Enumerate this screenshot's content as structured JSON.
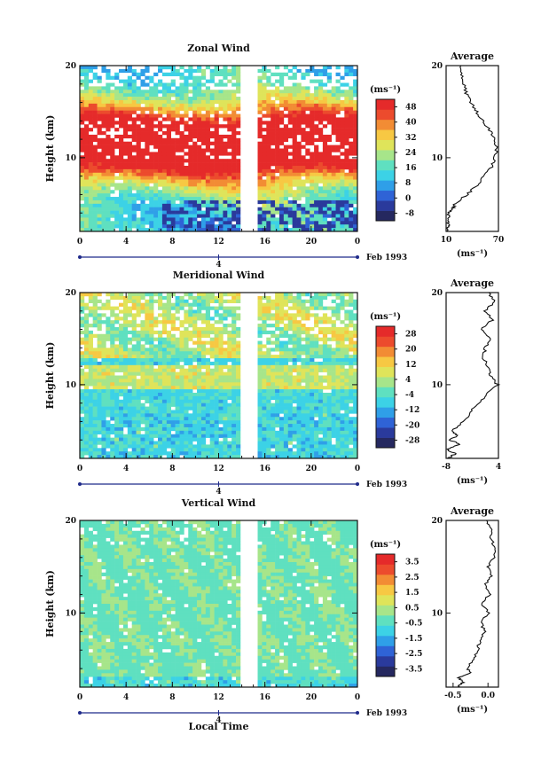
{
  "figure": {
    "xlabel": "Local Time",
    "date_label": "Feb 1993",
    "day_label": "4"
  },
  "chart_data": [
    {
      "type": "heatmap",
      "id": "zonal",
      "title": "Zonal Wind",
      "ylabel": "Height (km)",
      "xlabel": "",
      "x_ticks": [
        "0",
        "4",
        "8",
        "12",
        "16",
        "20",
        "0"
      ],
      "x_range_hours": [
        0,
        24
      ],
      "y_ticks": [
        "20",
        "10"
      ],
      "ylim_km": [
        2,
        20
      ],
      "data_gap_hours": [
        13.9,
        15.4
      ],
      "unit_label": "(ms⁻¹)",
      "colorbar_ticks": [
        "48",
        "40",
        "32",
        "24",
        "16",
        "8",
        "0",
        "-8"
      ],
      "colorbar_range": [
        -12,
        52
      ],
      "profile": {
        "title": "Average",
        "x_ticks": [
          "10",
          "70"
        ],
        "xlim": [
          10,
          70
        ],
        "y_ticks": [
          "20",
          "10"
        ],
        "unit_label": "(ms⁻¹)",
        "heights_km": [
          2,
          2.5,
          3,
          3.5,
          4,
          4.5,
          5,
          6,
          7,
          8,
          9,
          10,
          11,
          12,
          13,
          14,
          15,
          16,
          17,
          18,
          19,
          20
        ],
        "values": [
          12,
          13,
          12,
          14,
          12,
          18,
          20,
          34,
          45,
          54,
          62,
          66,
          68,
          66,
          60,
          52,
          45,
          38,
          33,
          30,
          28,
          27
        ]
      }
    },
    {
      "type": "heatmap",
      "id": "meridional",
      "title": "Meridional Wind",
      "ylabel": "Height (km)",
      "xlabel": "",
      "x_ticks": [
        "0",
        "4",
        "8",
        "12",
        "16",
        "20",
        "0"
      ],
      "x_range_hours": [
        0,
        24
      ],
      "y_ticks": [
        "20",
        "10"
      ],
      "ylim_km": [
        2,
        20
      ],
      "data_gap_hours": [
        13.9,
        15.4
      ],
      "unit_label": "(ms⁻¹)",
      "colorbar_ticks": [
        "28",
        "20",
        "12",
        "4",
        "-4",
        "-12",
        "-20",
        "-28"
      ],
      "colorbar_range": [
        -32,
        32
      ],
      "profile": {
        "title": "Average",
        "x_ticks": [
          "-8",
          "4"
        ],
        "xlim": [
          -8,
          4
        ],
        "y_ticks": [
          "20",
          "10"
        ],
        "unit_label": "(ms⁻¹)",
        "heights_km": [
          2,
          2.5,
          3,
          3.5,
          4,
          4.5,
          5,
          6,
          7,
          8,
          9,
          10,
          11,
          12,
          13,
          14,
          15,
          16,
          17,
          18,
          19,
          20
        ],
        "values": [
          -7.5,
          -6,
          -7.8,
          -5,
          -7,
          -5.5,
          -6.5,
          -4,
          -2.5,
          -0.5,
          1.5,
          3.8,
          2,
          1.5,
          0.5,
          1,
          2,
          0,
          2.5,
          1,
          3,
          1.8
        ]
      }
    },
    {
      "type": "heatmap",
      "id": "vertical",
      "title": "Vertical Wind",
      "ylabel": "Height (km)",
      "xlabel": "Local Time",
      "x_ticks": [
        "0",
        "4",
        "8",
        "12",
        "16",
        "20",
        "0"
      ],
      "x_range_hours": [
        0,
        24
      ],
      "y_ticks": [
        "20",
        "10"
      ],
      "ylim_km": [
        2,
        20
      ],
      "data_gap_hours": [
        13.9,
        15.4
      ],
      "unit_label": "(ms⁻¹)",
      "colorbar_ticks": [
        "3.5",
        "2.5",
        "1.5",
        "0.5",
        "-0.5",
        "-1.5",
        "-2.5",
        "-3.5"
      ],
      "colorbar_range": [
        -4,
        4
      ],
      "profile": {
        "title": "Average",
        "x_ticks": [
          "-0.5",
          "0.0"
        ],
        "xlim": [
          -0.6,
          0.15
        ],
        "y_ticks": [
          "20",
          "10"
        ],
        "unit_label": "(ms⁻¹)",
        "heights_km": [
          2,
          2.5,
          3,
          3.5,
          4,
          5,
          6,
          7,
          8,
          9,
          10,
          11,
          12,
          13,
          14,
          15,
          16,
          17,
          18,
          19,
          20
        ],
        "values": [
          -0.45,
          -0.35,
          -0.42,
          -0.25,
          -0.3,
          -0.2,
          -0.15,
          -0.12,
          -0.05,
          -0.1,
          0.0,
          -0.08,
          0.02,
          -0.05,
          0.05,
          0.0,
          0.08,
          0.12,
          0.03,
          0.06,
          -0.02
        ]
      }
    }
  ],
  "colors": {
    "palette": [
      "#25285f",
      "#2a3a9c",
      "#2f63d6",
      "#2f9fe8",
      "#3cd2e6",
      "#5fe0c0",
      "#a7e58a",
      "#dfe45a",
      "#f7c843",
      "#f28c34",
      "#ec4b2d",
      "#e52a2a"
    ],
    "axis": "#111111",
    "gap": "#ffffff"
  }
}
